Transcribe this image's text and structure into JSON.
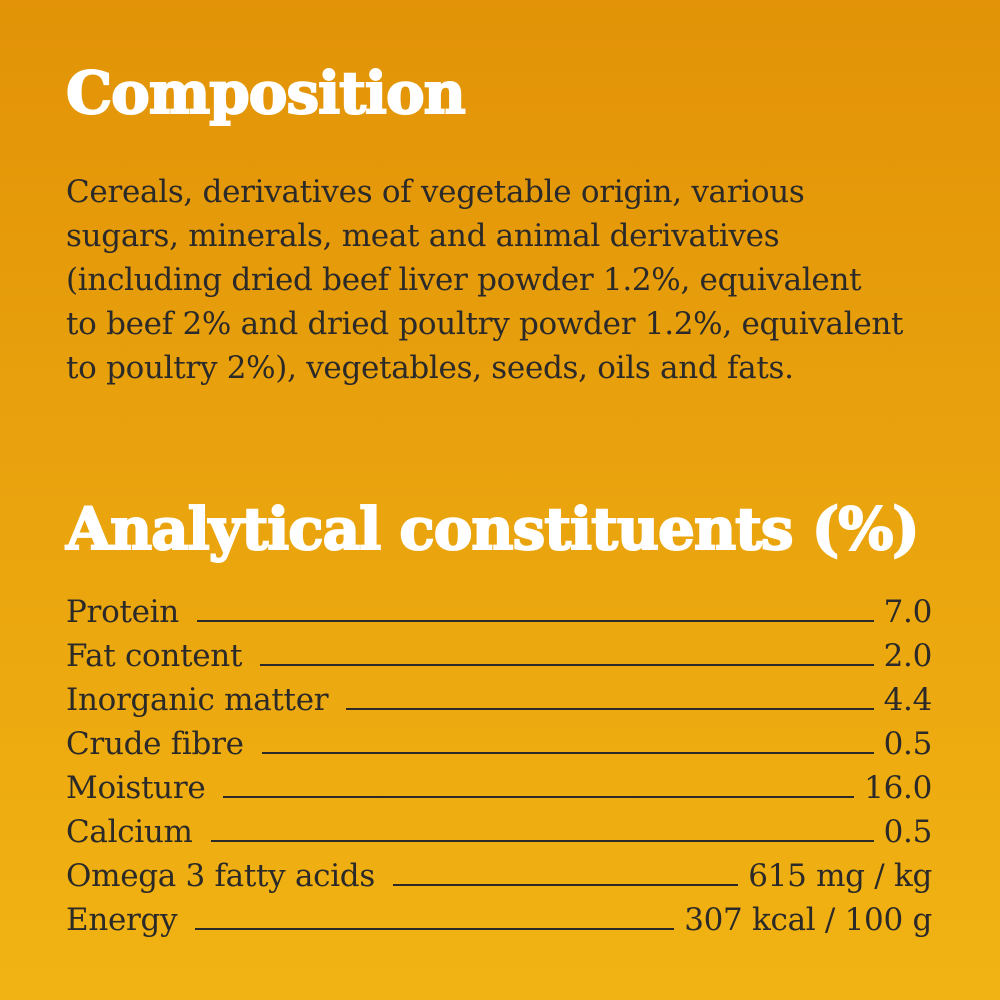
{
  "composition": {
    "title": "Composition",
    "lines": [
      "Cereals, derivatives of vegetable origin, various",
      "sugars, minerals, meat and animal derivatives",
      "(including dried beef liver powder 1.2%, equivalent",
      "to beef 2% and dried poultry powder 1.2%, equivalent",
      "to poultry 2%), vegetables, seeds, oils and fats."
    ]
  },
  "analytical": {
    "title": "Analytical constituents (%)",
    "rows": [
      {
        "label": "Protein",
        "value": "7.0"
      },
      {
        "label": "Fat content",
        "value": "2.0"
      },
      {
        "label": "Inorganic matter",
        "value": "4.4"
      },
      {
        "label": "Crude fibre",
        "value": "0.5"
      },
      {
        "label": "Moisture",
        "value": "16.0"
      },
      {
        "label": "Calcium",
        "value": "0.5"
      },
      {
        "label": "Omega 3 fatty acids",
        "value": "615 mg / kg"
      },
      {
        "label": "Energy",
        "value": "307 kcal / 100 g"
      }
    ]
  },
  "colors": {
    "background_top": "#e29307",
    "background_bottom": "#f1b313",
    "heading": "#ffffff",
    "text": "#2b2a28"
  }
}
